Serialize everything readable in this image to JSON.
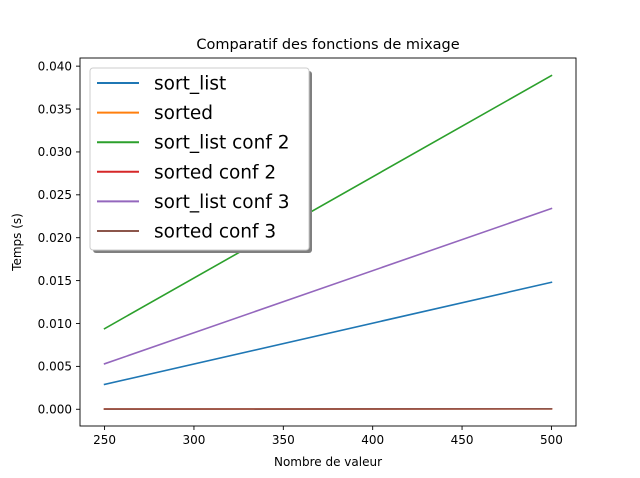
{
  "chart_data": {
    "type": "line",
    "title": "Comparatif des fonctions de mixage",
    "xlabel": "Nombre de valeur",
    "ylabel": "Temps (s)",
    "xlim": [
      236.25,
      513.75
    ],
    "ylim": [
      -0.00195,
      0.04095
    ],
    "xticks": [
      250,
      300,
      350,
      400,
      450,
      500
    ],
    "yticks": [
      0.0,
      0.005,
      0.01,
      0.015,
      0.02,
      0.025,
      0.03,
      0.035,
      0.04
    ],
    "ytick_labels": [
      "0.000",
      "0.005",
      "0.010",
      "0.015",
      "0.020",
      "0.025",
      "0.030",
      "0.035",
      "0.040"
    ],
    "grid": false,
    "legend_position": "top-left",
    "x": [
      250,
      500
    ],
    "series": [
      {
        "name": "sort_list",
        "color": "#1f77b4",
        "values": [
          0.0029,
          0.0148
        ]
      },
      {
        "name": "sorted",
        "color": "#ff7f0e",
        "values": [
          2e-05,
          5e-05
        ]
      },
      {
        "name": "sort_list conf 2",
        "color": "#2ca02c",
        "values": [
          0.0094,
          0.0389
        ]
      },
      {
        "name": "sorted conf 2",
        "color": "#d62728",
        "values": [
          2e-05,
          5e-05
        ]
      },
      {
        "name": "sort_list conf 3",
        "color": "#9467bd",
        "values": [
          0.0053,
          0.0234
        ]
      },
      {
        "name": "sorted conf 3",
        "color": "#8c564b",
        "values": [
          2e-05,
          5e-05
        ]
      }
    ]
  }
}
